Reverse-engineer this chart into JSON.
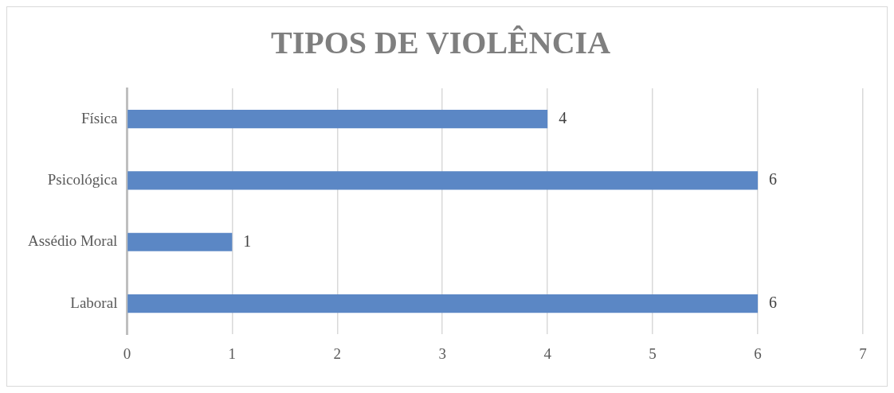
{
  "chart_data": {
    "type": "bar",
    "title": "TIPOS DE VIOLÊNCIA",
    "orientation": "horizontal",
    "categories": [
      "Física",
      "Psicológica",
      "Assédio Moral",
      "Laboral"
    ],
    "values": [
      4,
      6,
      1,
      6
    ],
    "color": "#5b87c5",
    "xlim": [
      0,
      7
    ],
    "xticks": [
      0,
      1,
      2,
      3,
      4,
      5,
      6,
      7
    ],
    "grid": "x",
    "data_labels": true
  }
}
